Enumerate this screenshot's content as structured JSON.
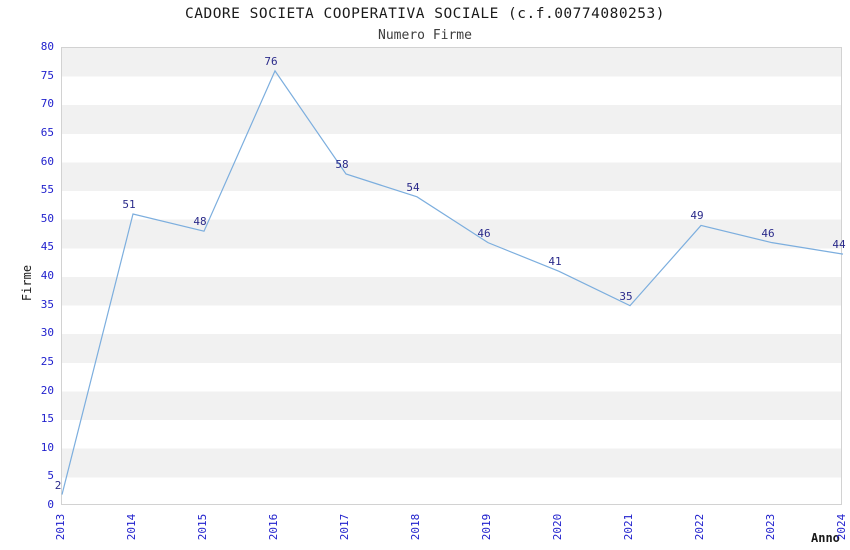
{
  "header": {
    "title": "CADORE SOCIETA COOPERATIVA SOCIALE (c.f.00774080253)",
    "subtitle": "Numero Firme"
  },
  "chart_data": {
    "type": "line",
    "title": "CADORE SOCIETA COOPERATIVA SOCIALE (c.f.00774080253)",
    "subtitle": "Numero Firme",
    "xlabel": "Anno",
    "ylabel": "Firme",
    "categories": [
      2013,
      2014,
      2015,
      2016,
      2017,
      2018,
      2019,
      2020,
      2021,
      2022,
      2023,
      2024
    ],
    "values": [
      2,
      51,
      48,
      76,
      58,
      54,
      46,
      41,
      35,
      49,
      46,
      44
    ],
    "ylim": [
      0,
      80
    ],
    "ytick_step": 5,
    "grid": "alternating-horizontal-bands",
    "legend": "none",
    "colors": {
      "line": "#7caede",
      "tick_labels": "#2121cd",
      "value_labels": "#2a2a8a",
      "band_gray": "#f1f1f1",
      "band_white": "#ffffff",
      "plot_border": "#d2d2d2",
      "title_text": "#1a1a1a"
    }
  }
}
